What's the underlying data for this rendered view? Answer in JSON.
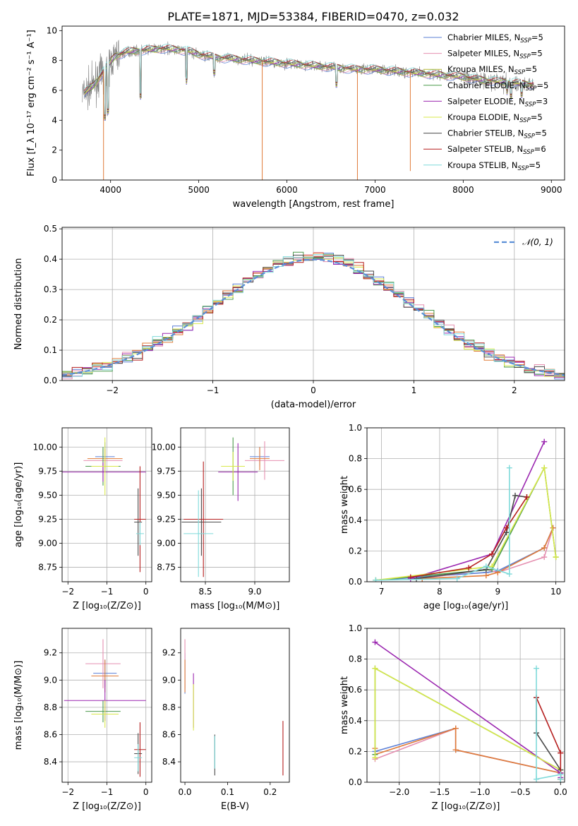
{
  "figure_title": "PLATE=1871, MJD=53384, FIBERID=0470, z=0.032",
  "colors": {
    "chabrier_miles": "#5b7fd6",
    "salpeter_miles": "#e58fb0",
    "kroupa_miles": "#b5b836",
    "chabrier_elodie": "#4c9a4c",
    "salpeter_elodie": "#9b27b0",
    "kroupa_elodie": "#d8e84a",
    "chabrier_stelib": "#4a4a4a",
    "salpeter_stelib": "#b51e1e",
    "kroupa_stelib": "#7fdada",
    "data": "#808080",
    "orange": "#e07b39",
    "normal": "#5b8fd6"
  },
  "chart_data": [
    {
      "id": "spectrum",
      "type": "line",
      "xlabel": "wavelength [Angstrom, rest frame]",
      "ylabel": "Flux [f_λ 10⁻¹⁷ erg cm⁻² s⁻¹ A⁻¹]",
      "xlim": [
        3450,
        9150
      ],
      "ylim": [
        0,
        10.3
      ],
      "xticks": [
        4000,
        5000,
        6000,
        7000,
        8000,
        9000
      ],
      "yticks": [
        0,
        2,
        4,
        6,
        8,
        10
      ],
      "grid": false,
      "legend_position": "top-right",
      "legend": [
        {
          "label": "Chabrier MILES, N",
          "sub": "SSP",
          "suffix": "=5",
          "color_key": "chabrier_miles"
        },
        {
          "label": "Salpeter MILES, N",
          "sub": "SSP",
          "suffix": "=5",
          "color_key": "salpeter_miles"
        },
        {
          "label": "Kroupa MILES, N",
          "sub": "SSP",
          "suffix": "=5",
          "color_key": "kroupa_miles"
        },
        {
          "label": "Chabrier ELODIE, N",
          "sub": "SSP",
          "suffix": "=5",
          "color_key": "chabrier_elodie"
        },
        {
          "label": "Salpeter ELODIE, N",
          "sub": "SSP",
          "suffix": "=3",
          "color_key": "salpeter_elodie"
        },
        {
          "label": "Kroupa ELODIE, N",
          "sub": "SSP",
          "suffix": "=5",
          "color_key": "kroupa_elodie"
        },
        {
          "label": "Chabrier STELIB, N",
          "sub": "SSP",
          "suffix": "=5",
          "color_key": "chabrier_stelib"
        },
        {
          "label": "Salpeter STELIB, N",
          "sub": "SSP",
          "suffix": "=6",
          "color_key": "salpeter_stelib"
        },
        {
          "label": "Kroupa STELIB, N",
          "sub": "SSP",
          "suffix": "=5",
          "color_key": "kroupa_stelib"
        }
      ],
      "continuum": [
        [
          3700,
          5.8
        ],
        [
          3800,
          6.3
        ],
        [
          3900,
          7.1
        ],
        [
          3960,
          7.6
        ],
        [
          4050,
          8.3
        ],
        [
          4200,
          8.6
        ],
        [
          4400,
          8.7
        ],
        [
          4600,
          8.8
        ],
        [
          4800,
          8.7
        ],
        [
          4900,
          8.6
        ],
        [
          5000,
          8.4
        ],
        [
          5200,
          8.2
        ],
        [
          5400,
          8.1
        ],
        [
          5600,
          8.0
        ],
        [
          5800,
          7.9
        ],
        [
          6000,
          7.8
        ],
        [
          6200,
          7.7
        ],
        [
          6400,
          7.6
        ],
        [
          6600,
          7.5
        ],
        [
          6800,
          7.4
        ],
        [
          7000,
          7.4
        ],
        [
          7200,
          7.3
        ],
        [
          7400,
          7.2
        ],
        [
          7600,
          7.1
        ],
        [
          7800,
          7.0
        ],
        [
          8000,
          6.9
        ],
        [
          8200,
          6.7
        ],
        [
          8400,
          6.6
        ],
        [
          8600,
          6.5
        ],
        [
          8800,
          6.4
        ]
      ],
      "model_dips": [
        [
          3934,
          4.2
        ],
        [
          3969,
          4.6
        ],
        [
          4340,
          5.6
        ],
        [
          4861,
          6.6
        ],
        [
          5175,
          7.2
        ],
        [
          6563,
          6.4
        ],
        [
          8498,
          5.9
        ],
        [
          8542,
          5.6
        ],
        [
          8662,
          5.7
        ]
      ],
      "spikes": [
        [
          3920,
          0
        ],
        [
          5720,
          0
        ],
        [
          6800,
          0
        ],
        [
          7400,
          0.6
        ]
      ]
    },
    {
      "id": "residuals",
      "type": "line",
      "xlabel": "(data-model)/error",
      "ylabel": "Normed distribution",
      "xlim": [
        -2.5,
        2.5
      ],
      "ylim": [
        0,
        0.505
      ],
      "xticks": [
        -2,
        -1,
        0,
        1,
        2
      ],
      "yticks": [
        0.0,
        0.1,
        0.2,
        0.3,
        0.4,
        0.5
      ],
      "grid": true,
      "legend_position": "top-right",
      "legend_label": "𝒩(0, 1)",
      "bin_width": 0.1
    },
    {
      "id": "age_vs_Z",
      "type": "scatter",
      "xlabel": "Z [log₁₀(Z/Z⊙)]",
      "ylabel": "age  [log₁₀(age/yr)]",
      "xlim": [
        -2.15,
        0.15
      ],
      "ylim": [
        8.6,
        10.2
      ],
      "xticks": [
        -2,
        -1,
        0
      ],
      "yticks": [
        8.75,
        9.0,
        9.25,
        9.5,
        9.75,
        10.0
      ],
      "grid": true,
      "points": [
        {
          "x": -1.05,
          "y": 9.9,
          "xerr": 0.25,
          "yerr": 0.15,
          "color_key": "chabrier_miles"
        },
        {
          "x": -1.1,
          "y": 9.86,
          "xerr": 0.5,
          "yerr": 0.12,
          "color_key": "salpeter_miles"
        },
        {
          "x": -1.05,
          "y": 9.88,
          "xerr": 0.45,
          "yerr": 0.1,
          "color_key": "orange"
        },
        {
          "x": -1.1,
          "y": 9.8,
          "xerr": 0.45,
          "yerr": 0.2,
          "color_key": "chabrier_elodie"
        },
        {
          "x": -1.1,
          "y": 9.74,
          "xerr": 1.1,
          "yerr": 0.1,
          "color_key": "salpeter_elodie"
        },
        {
          "x": -1.05,
          "y": 9.8,
          "xerr": 0.35,
          "yerr": 0.3,
          "color_key": "kroupa_elodie"
        },
        {
          "x": -0.2,
          "y": 9.22,
          "xerr": 0.1,
          "yerr": 0.35,
          "color_key": "chabrier_stelib"
        },
        {
          "x": -0.15,
          "y": 9.25,
          "xerr": 0.15,
          "yerr": 0.55,
          "color_key": "salpeter_stelib"
        },
        {
          "x": -0.15,
          "y": 9.1,
          "xerr": 0.1,
          "yerr": 0.12,
          "color_key": "kroupa_stelib"
        }
      ]
    },
    {
      "id": "age_vs_mass",
      "type": "scatter",
      "xlabel": "mass [log₁₀(M/M⊙)]",
      "ylabel": "",
      "xlim": [
        8.25,
        9.35
      ],
      "ylim": [
        8.6,
        10.2
      ],
      "xticks": [
        8.5,
        9.0
      ],
      "yticks": [
        8.75,
        9.0,
        9.25,
        9.5,
        9.75,
        10.0
      ],
      "grid": true,
      "points": [
        {
          "x": 9.05,
          "y": 9.9,
          "xerr": 0.1,
          "yerr": 0.1,
          "color_key": "chabrier_miles"
        },
        {
          "x": 9.1,
          "y": 9.86,
          "xerr": 0.2,
          "yerr": 0.2,
          "color_key": "salpeter_miles"
        },
        {
          "x": 9.05,
          "y": 9.88,
          "xerr": 0.1,
          "yerr": 0.12,
          "color_key": "orange"
        },
        {
          "x": 8.78,
          "y": 9.8,
          "xerr": 0.12,
          "yerr": 0.3,
          "color_key": "chabrier_elodie"
        },
        {
          "x": 8.83,
          "y": 9.74,
          "xerr": 0.2,
          "yerr": 0.3,
          "color_key": "salpeter_elodie"
        },
        {
          "x": 8.78,
          "y": 9.8,
          "xerr": 0.12,
          "yerr": 0.15,
          "color_key": "kroupa_elodie"
        },
        {
          "x": 8.46,
          "y": 9.22,
          "xerr": 0.2,
          "yerr": 0.35,
          "color_key": "chabrier_stelib"
        },
        {
          "x": 8.48,
          "y": 9.25,
          "xerr": 0.2,
          "yerr": 0.6,
          "color_key": "salpeter_stelib"
        },
        {
          "x": 8.43,
          "y": 9.1,
          "xerr": 0.15,
          "yerr": 0.45,
          "color_key": "kroupa_stelib"
        }
      ]
    },
    {
      "id": "weight_vs_age",
      "type": "line",
      "xlabel": "age  [log₁₀(age/yr)]",
      "ylabel": "mass weight",
      "xlim": [
        6.75,
        10.15
      ],
      "ylim": [
        0,
        1.0
      ],
      "xticks": [
        7,
        8,
        9,
        10
      ],
      "yticks": [
        0.0,
        0.2,
        0.4,
        0.6,
        0.8,
        1.0
      ],
      "grid": true,
      "series": [
        {
          "color_key": "chabrier_miles",
          "x": [
            6.9,
            8.8,
            9.0,
            9.8,
            9.95
          ],
          "y": [
            0.01,
            0.06,
            0.07,
            0.22,
            0.35
          ]
        },
        {
          "color_key": "salpeter_miles",
          "x": [
            7.7,
            8.8,
            9.0,
            9.8,
            9.95
          ],
          "y": [
            0.02,
            0.08,
            0.06,
            0.16,
            0.35
          ]
        },
        {
          "color_key": "orange",
          "x": [
            7.7,
            8.8,
            9.0,
            9.8,
            9.95
          ],
          "y": [
            0.02,
            0.04,
            0.06,
            0.22,
            0.35
          ]
        },
        {
          "color_key": "chabrier_elodie",
          "x": [
            6.9,
            8.9,
            9.8,
            10.0
          ],
          "y": [
            0.01,
            0.08,
            0.74,
            0.16
          ]
        },
        {
          "color_key": "salpeter_elodie",
          "x": [
            7.5,
            8.9,
            9.8
          ],
          "y": [
            0.02,
            0.18,
            0.91
          ]
        },
        {
          "color_key": "kroupa_elodie",
          "x": [
            6.9,
            8.9,
            9.8,
            10.0
          ],
          "y": [
            0.01,
            0.1,
            0.74,
            0.16
          ]
        },
        {
          "color_key": "chabrier_stelib",
          "x": [
            7.6,
            8.8,
            9.15,
            9.3,
            9.5
          ],
          "y": [
            0.02,
            0.08,
            0.32,
            0.56,
            0.55
          ]
        },
        {
          "color_key": "salpeter_stelib",
          "x": [
            7.5,
            8.5,
            8.9,
            9.15,
            9.5
          ],
          "y": [
            0.03,
            0.09,
            0.18,
            0.35,
            0.55
          ]
        },
        {
          "color_key": "kroupa_stelib",
          "x": [
            6.9,
            8.3,
            8.8,
            9.2,
            9.2
          ],
          "y": [
            0.01,
            0.02,
            0.1,
            0.05,
            0.74
          ]
        }
      ]
    },
    {
      "id": "mass_vs_Z",
      "type": "scatter",
      "xlabel": "Z [log₁₀(Z/Z⊙)]",
      "ylabel": "mass [log₁₀(M/M⊙)]",
      "xlim": [
        -2.15,
        0.15
      ],
      "ylim": [
        8.25,
        9.38
      ],
      "xticks": [
        -2,
        -1,
        0
      ],
      "yticks": [
        8.4,
        8.6,
        8.8,
        9.0,
        9.2
      ],
      "grid": true,
      "points": [
        {
          "x": -1.05,
          "y": 9.05,
          "xerr": 0.3,
          "yerr": 0.1,
          "color_key": "chabrier_miles"
        },
        {
          "x": -1.1,
          "y": 9.12,
          "xerr": 0.45,
          "yerr": 0.18,
          "color_key": "salpeter_miles"
        },
        {
          "x": -1.05,
          "y": 9.03,
          "xerr": 0.35,
          "yerr": 0.12,
          "color_key": "orange"
        },
        {
          "x": -1.1,
          "y": 8.77,
          "xerr": 0.45,
          "yerr": 0.08,
          "color_key": "chabrier_elodie"
        },
        {
          "x": -1.05,
          "y": 8.85,
          "xerr": 1.05,
          "yerr": 0.15,
          "color_key": "salpeter_elodie"
        },
        {
          "x": -1.05,
          "y": 8.75,
          "xerr": 0.35,
          "yerr": 0.1,
          "color_key": "kroupa_elodie"
        },
        {
          "x": -0.2,
          "y": 8.46,
          "xerr": 0.1,
          "yerr": 0.15,
          "color_key": "chabrier_stelib"
        },
        {
          "x": -0.15,
          "y": 8.49,
          "xerr": 0.15,
          "yerr": 0.2,
          "color_key": "salpeter_stelib"
        },
        {
          "x": -0.2,
          "y": 8.43,
          "xerr": 0.1,
          "yerr": 0.1,
          "color_key": "kroupa_stelib"
        }
      ]
    },
    {
      "id": "mass_vs_ebv",
      "type": "scatter",
      "xlabel": "E(B-V)",
      "ylabel": "",
      "xlim": [
        -0.01,
        0.245
      ],
      "ylim": [
        8.25,
        9.38
      ],
      "xticks": [
        0.0,
        0.1,
        0.2
      ],
      "yticks": [
        8.4,
        8.6,
        8.8,
        9.0,
        9.2
      ],
      "grid": false,
      "points": [
        {
          "x": 0.0,
          "y": 9.05,
          "xerr": 0,
          "yerr": 0.15,
          "color_key": "chabrier_miles"
        },
        {
          "x": 0.0,
          "y": 9.12,
          "xerr": 0,
          "yerr": 0.18,
          "color_key": "salpeter_miles"
        },
        {
          "x": 0.0,
          "y": 9.03,
          "xerr": 0,
          "yerr": 0.12,
          "color_key": "orange"
        },
        {
          "x": 0.02,
          "y": 8.85,
          "xerr": 0,
          "yerr": 0.2,
          "color_key": "salpeter_elodie"
        },
        {
          "x": 0.02,
          "y": 8.8,
          "xerr": 0,
          "yerr": 0.17,
          "color_key": "kroupa_elodie"
        },
        {
          "x": 0.07,
          "y": 8.45,
          "xerr": 0,
          "yerr": 0.15,
          "color_key": "chabrier_stelib"
        },
        {
          "x": 0.07,
          "y": 8.47,
          "xerr": 0,
          "yerr": 0.12,
          "color_key": "kroupa_stelib"
        },
        {
          "x": 0.23,
          "y": 8.5,
          "xerr": 0,
          "yerr": 0.2,
          "color_key": "salpeter_stelib"
        }
      ]
    },
    {
      "id": "weight_vs_Z",
      "type": "line",
      "xlabel": "Z [log₁₀(Z/Z⊙)]",
      "ylabel": "mass weight",
      "xlim": [
        -2.4,
        0.05
      ],
      "ylim": [
        0,
        1.0
      ],
      "xticks": [
        -2.0,
        -1.5,
        -1.0,
        -0.5,
        0.0
      ],
      "yticks": [
        0.0,
        0.2,
        0.4,
        0.6,
        0.8,
        1.0
      ],
      "grid": true,
      "series": [
        {
          "color_key": "chabrier_miles",
          "x": [
            -2.3,
            -1.3,
            -1.3,
            0.0,
            0.0
          ],
          "y": [
            0.2,
            0.35,
            0.21,
            0.06,
            0.02
          ]
        },
        {
          "color_key": "salpeter_miles",
          "x": [
            -2.3,
            -1.3,
            -1.3,
            0.0,
            0.0
          ],
          "y": [
            0.15,
            0.35,
            0.21,
            0.06,
            0.02
          ]
        },
        {
          "color_key": "orange",
          "x": [
            -2.3,
            -2.3,
            -1.3,
            -1.3,
            0.0,
            0.0
          ],
          "y": [
            0.22,
            0.18,
            0.35,
            0.21,
            0.06,
            0.02
          ]
        },
        {
          "color_key": "chabrier_elodie",
          "x": [
            -2.3,
            -2.3,
            0.0,
            0.0
          ],
          "y": [
            0.18,
            0.74,
            0.08,
            0.02
          ]
        },
        {
          "color_key": "salpeter_elodie",
          "x": [
            -2.3,
            0.0,
            0.0
          ],
          "y": [
            0.91,
            0.06,
            0.03
          ]
        },
        {
          "color_key": "kroupa_elodie",
          "x": [
            -2.3,
            -2.3,
            0.0,
            0.0
          ],
          "y": [
            0.16,
            0.74,
            0.08,
            0.02
          ]
        },
        {
          "color_key": "chabrier_stelib",
          "x": [
            -0.3,
            -0.3,
            0.0,
            0.0
          ],
          "y": [
            0.55,
            0.32,
            0.08,
            0.02
          ]
        },
        {
          "color_key": "salpeter_stelib",
          "x": [
            -0.3,
            0.0,
            0.0,
            0.0
          ],
          "y": [
            0.55,
            0.19,
            0.19,
            0.02
          ]
        },
        {
          "color_key": "kroupa_stelib",
          "x": [
            -0.3,
            -0.3,
            0.0,
            0.0
          ],
          "y": [
            0.74,
            0.02,
            0.05,
            0.02
          ]
        }
      ]
    }
  ]
}
